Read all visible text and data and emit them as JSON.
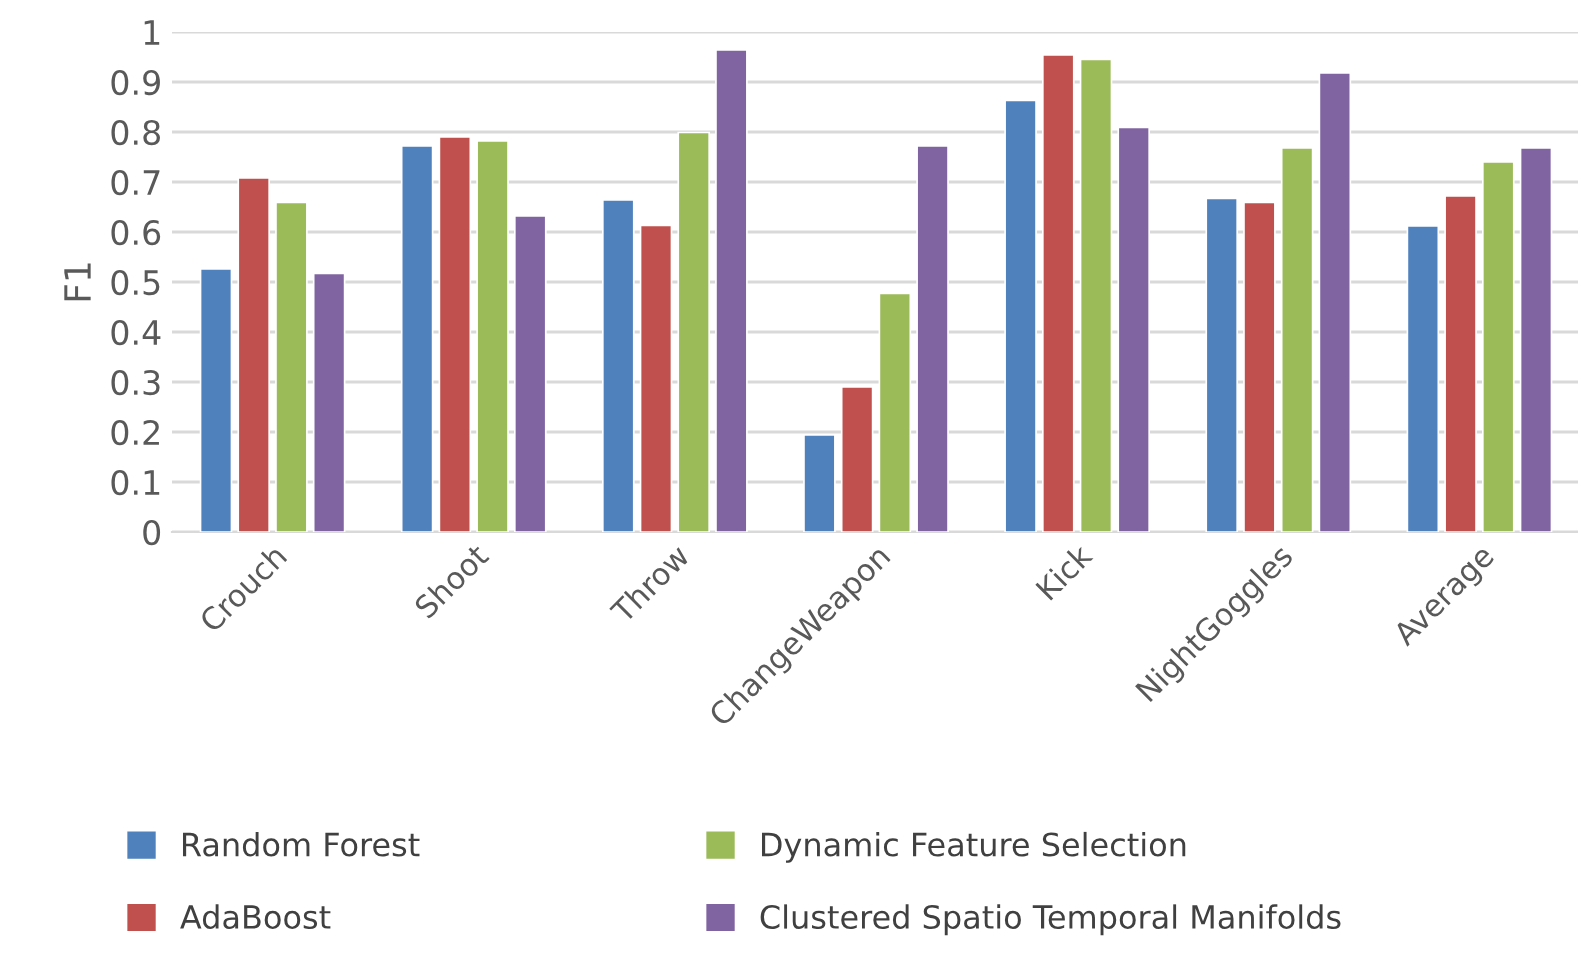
{
  "chart_data": {
    "type": "bar",
    "ylabel": "F1",
    "categories": [
      "Crouch",
      "Shoot",
      "Throw",
      "ChangeWeapon",
      "Kick",
      "NightGoggles",
      "Average"
    ],
    "series": [
      {
        "name": "Random Forest",
        "color": "#4f81bd",
        "values": [
          0.526,
          0.772,
          0.664,
          0.194,
          0.863,
          0.667,
          0.612
        ]
      },
      {
        "name": "AdaBoost",
        "color": "#c0504d",
        "values": [
          0.708,
          0.79,
          0.613,
          0.29,
          0.954,
          0.659,
          0.672
        ]
      },
      {
        "name": "Dynamic Feature Selection",
        "color": "#9bbb59",
        "values": [
          0.659,
          0.782,
          0.799,
          0.477,
          0.945,
          0.768,
          0.74
        ]
      },
      {
        "name": "Clustered Spatio Temporal Manifolds",
        "color": "#8064a2",
        "values": [
          0.517,
          0.632,
          0.964,
          0.772,
          0.809,
          0.918,
          0.768
        ]
      }
    ],
    "ylim": [
      0,
      1
    ],
    "yticks": [
      0,
      0.1,
      0.2,
      0.3,
      0.4,
      0.5,
      0.6,
      0.7,
      0.8,
      0.9,
      1
    ],
    "grid": "y",
    "legend": "bottom"
  }
}
